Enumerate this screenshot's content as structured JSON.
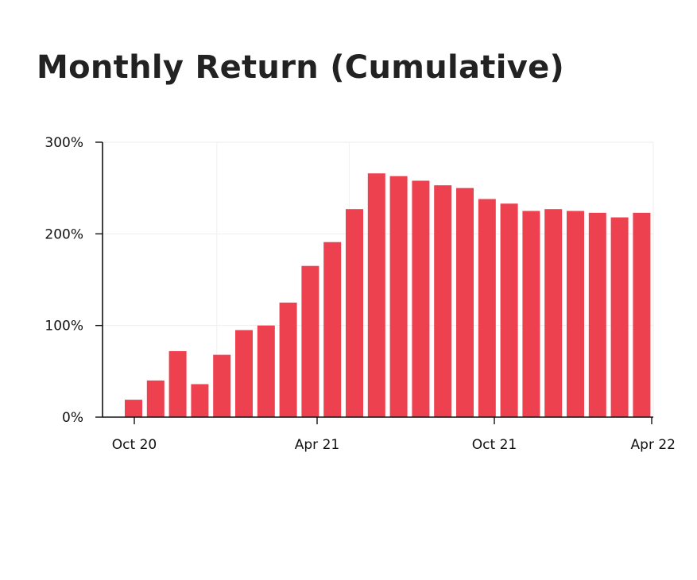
{
  "chart_data": {
    "type": "bar",
    "title": "Monthly Return (Cumulative)",
    "xlabel": "",
    "ylabel": "",
    "ylim": [
      0,
      300
    ],
    "yticks": [
      "0%",
      "100%",
      "200%",
      "300%"
    ],
    "ytick_values": [
      0,
      100,
      200,
      300
    ],
    "xticks": [
      {
        "label": "Oct 20",
        "month": "2020-10"
      },
      {
        "label": "Apr 21",
        "month": "2021-04"
      },
      {
        "label": "Oct 21",
        "month": "2021-10"
      },
      {
        "label": "Apr 22",
        "month": "2022-04"
      }
    ],
    "categories": [
      "2020-10",
      "2020-11",
      "2020-12",
      "2021-01",
      "2021-02",
      "2021-03",
      "2021-04",
      "2021-05",
      "2021-06",
      "2021-07",
      "2021-08",
      "2021-09",
      "2021-10",
      "2021-11",
      "2021-12",
      "2022-01",
      "2022-02",
      "2022-03",
      "2022-04",
      "2022-05",
      "2022-06",
      "2022-07",
      "2022-08",
      "2022-09"
    ],
    "values": [
      19,
      40,
      72,
      36,
      68,
      95,
      100,
      125,
      165,
      191,
      227,
      266,
      263,
      258,
      253,
      250,
      238,
      233,
      225,
      227,
      225,
      223,
      218,
      223
    ],
    "grid": true,
    "bar_color": "#EE4150"
  }
}
